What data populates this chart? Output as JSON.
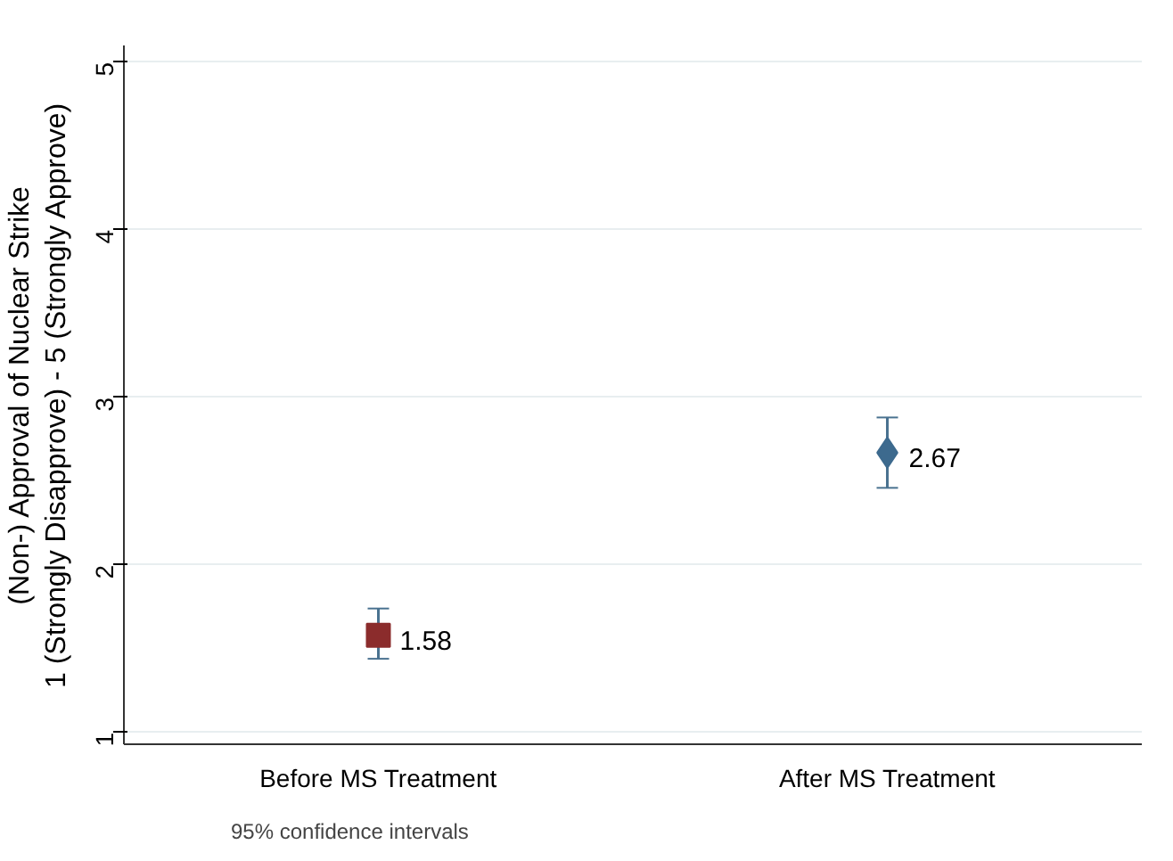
{
  "chart_data": {
    "type": "scatter",
    "categories": [
      "Before MS Treatment",
      "After MS Treatment"
    ],
    "ylabel": "(Non-) Approval of Nuclear Strike\n1 (Strongly Disapprove) - 5 (Strongly Approve)",
    "series": [
      {
        "color": "#8b2c2c",
        "marker": "square",
        "values": [
          1.58,
          null
        ],
        "errors": [
          [
            1.44,
            1.74
          ],
          null
        ]
      },
      {
        "color": "#3d6a8e",
        "marker": "diamond",
        "values": [
          null,
          2.67
        ],
        "errors": [
          null,
          [
            2.46,
            2.88
          ]
        ]
      }
    ],
    "ylim": [
      0.93,
      5.1
    ],
    "yticks": [
      1,
      2,
      3,
      4,
      5
    ],
    "grid": "y",
    "data_labels": true,
    "annotations": [
      "95% confidence intervals"
    ]
  }
}
